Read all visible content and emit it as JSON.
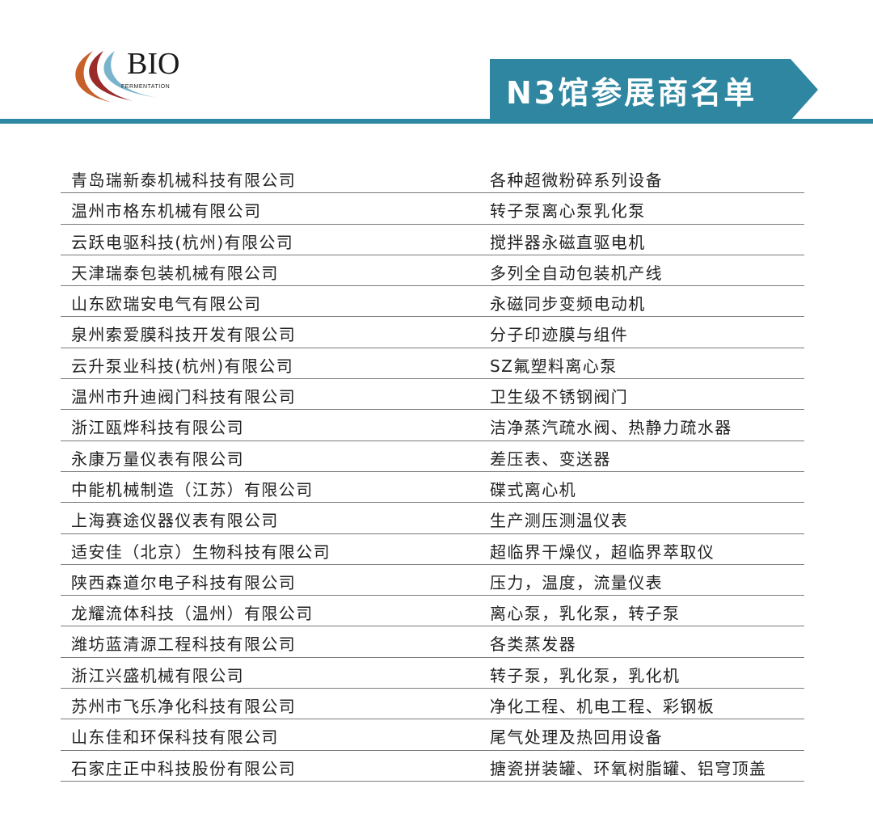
{
  "logo": {
    "text": "BIO",
    "subtext": "FERMENTATION"
  },
  "header": {
    "title": "N3馆参展商名单",
    "accent_color": "#2e88a3"
  },
  "exhibitors": [
    {
      "company": "青岛瑞新泰机械科技有限公司",
      "products": "各种超微粉碎系列设备"
    },
    {
      "company": "温州市格东机械有限公司",
      "products": "转子泵离心泵乳化泵"
    },
    {
      "company": "云跃电驱科技(杭州)有限公司",
      "products": "搅拌器永磁直驱电机"
    },
    {
      "company": "天津瑞泰包装机械有限公司",
      "products": "多列全自动包装机产线"
    },
    {
      "company": "山东欧瑞安电气有限公司",
      "products": "永磁同步变频电动机"
    },
    {
      "company": "泉州索爱膜科技开发有限公司",
      "products": "分子印迹膜与组件"
    },
    {
      "company": "云升泵业科技(杭州)有限公司",
      "products": "SZ氟塑料离心泵"
    },
    {
      "company": "温州市升迪阀门科技有限公司",
      "products": "卫生级不锈钢阀门"
    },
    {
      "company": "浙江瓯烨科技有限公司",
      "products": "洁净蒸汽疏水阀、热静力疏水器"
    },
    {
      "company": "永康万量仪表有限公司",
      "products": "差压表、变送器"
    },
    {
      "company": "中能机械制造（江苏）有限公司",
      "products": "碟式离心机"
    },
    {
      "company": "上海赛途仪器仪表有限公司",
      "products": "生产测压测温仪表"
    },
    {
      "company": "适安佳（北京）生物科技有限公司",
      "products": "超临界干燥仪，超临界萃取仪"
    },
    {
      "company": "陕西森道尔电子科技有限公司",
      "products": "压力，温度，流量仪表"
    },
    {
      "company": "龙耀流体科技（温州）有限公司",
      "products": "离心泵，乳化泵，转子泵"
    },
    {
      "company": "潍坊蓝清源工程科技有限公司",
      "products": "各类蒸发器"
    },
    {
      "company": "浙江兴盛机械有限公司",
      "products": "转子泵，乳化泵，乳化机"
    },
    {
      "company": "苏州市飞乐净化科技有限公司",
      "products": "净化工程、机电工程、彩钢板"
    },
    {
      "company": "山东佳和环保科技有限公司",
      "products": "尾气处理及热回用设备"
    },
    {
      "company": "石家庄正中科技股份有限公司",
      "products": "搪瓷拼装罐、环氧树脂罐、铝穹顶盖"
    }
  ]
}
